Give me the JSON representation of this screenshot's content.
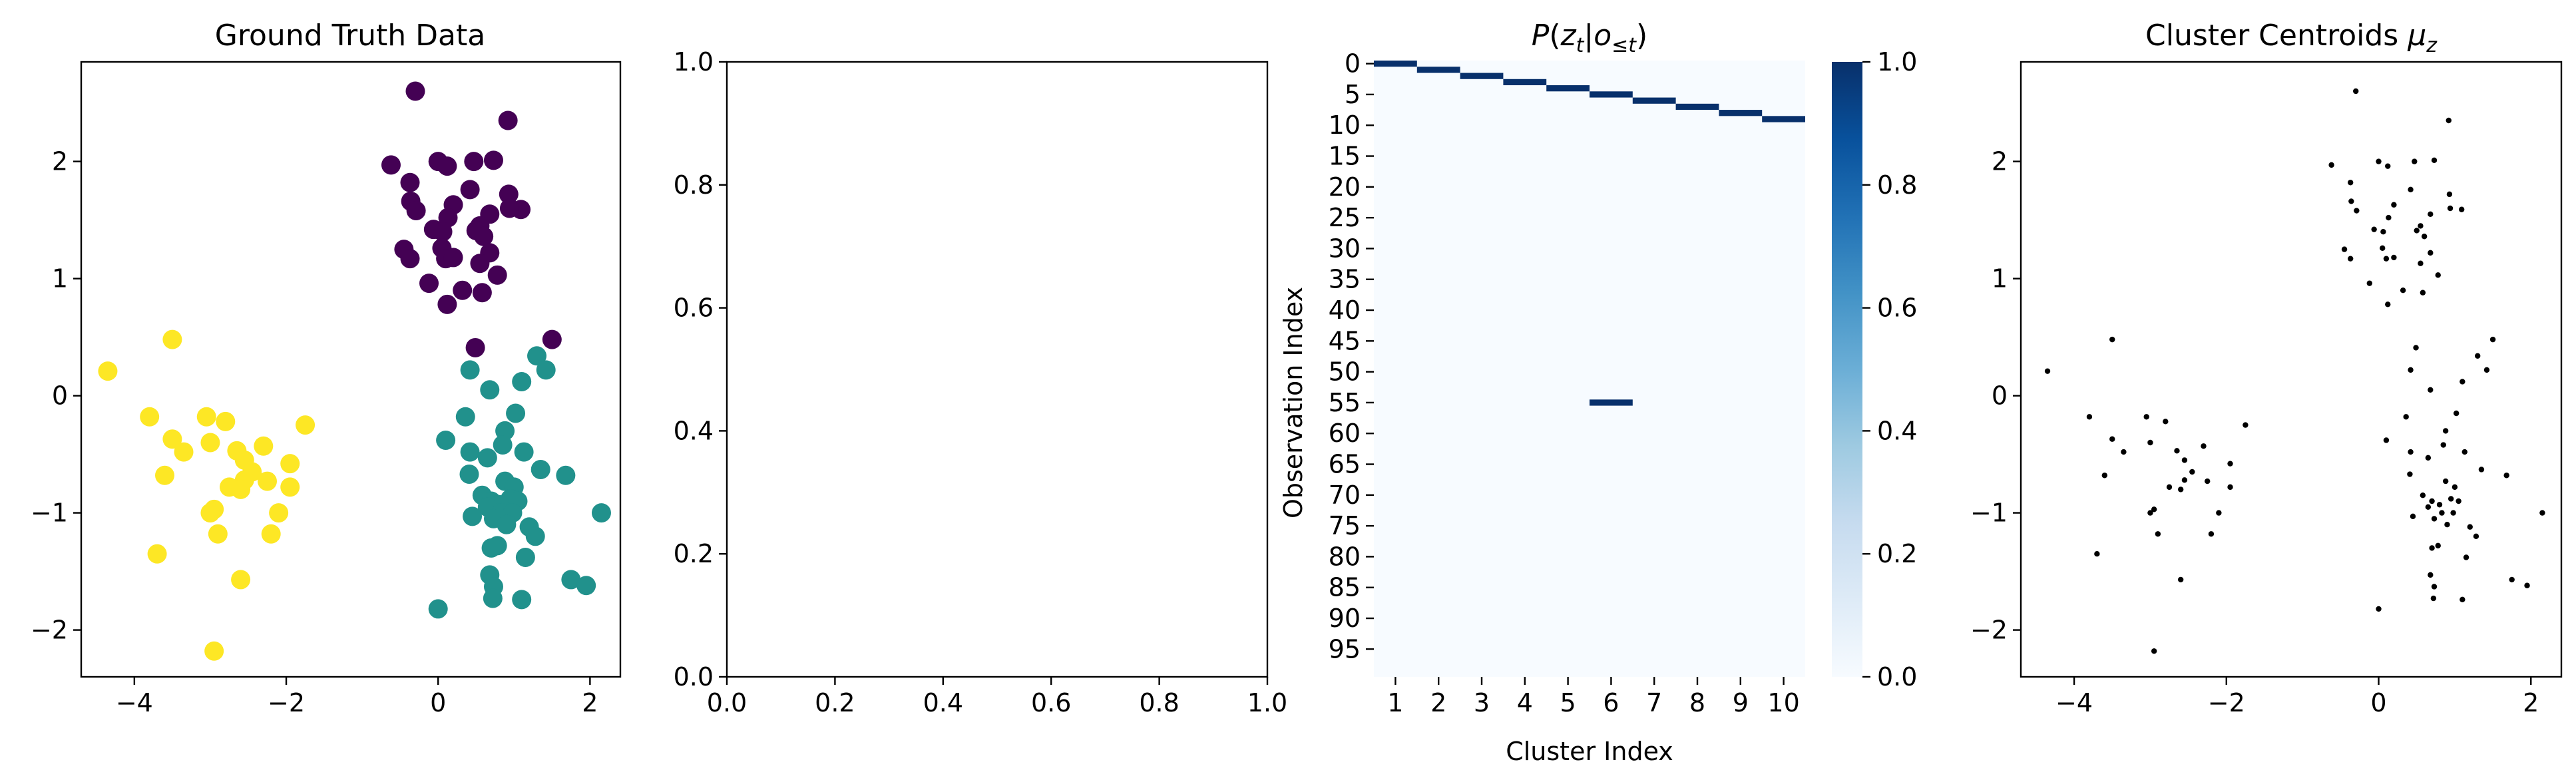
{
  "figure": {
    "panel1": {
      "title": "Ground Truth Data"
    },
    "panel2": {
      "title": ""
    },
    "panel3": {
      "title": "P(z_t | o_{≤t})",
      "xlabel": "Cluster Index",
      "ylabel": "Observation Index"
    },
    "panel4": {
      "title": "Cluster Centroids μ_z"
    }
  },
  "chart_data": [
    {
      "type": "scatter",
      "title": "Ground Truth Data",
      "xlim": [
        -4.7,
        2.4
      ],
      "ylim": [
        -2.4,
        2.85
      ],
      "xticks": [
        -4,
        -2,
        0,
        2
      ],
      "yticks": [
        -2,
        -1,
        0,
        1,
        2
      ],
      "xtick_labels": [
        "−4",
        "−2",
        "0",
        "2"
      ],
      "ytick_labels": [
        "−2",
        "−1",
        "0",
        "1",
        "2"
      ],
      "grid": false,
      "series": [
        {
          "color": "#440154",
          "points": [
            [
              -0.3,
              2.6
            ],
            [
              0.92,
              2.35
            ],
            [
              -0.62,
              1.97
            ],
            [
              0,
              2
            ],
            [
              0.12,
              1.96
            ],
            [
              0.47,
              2
            ],
            [
              0.73,
              2.01
            ],
            [
              -0.37,
              1.82
            ],
            [
              0.42,
              1.76
            ],
            [
              0.93,
              1.72
            ],
            [
              -0.36,
              1.66
            ],
            [
              -0.29,
              1.58
            ],
            [
              0.2,
              1.63
            ],
            [
              0.68,
              1.55
            ],
            [
              1.09,
              1.59
            ],
            [
              0.13,
              1.52
            ],
            [
              0.94,
              1.6
            ],
            [
              0.55,
              1.45
            ],
            [
              -0.06,
              1.42
            ],
            [
              0.06,
              1.4
            ],
            [
              0.5,
              1.41
            ],
            [
              0.6,
              1.36
            ],
            [
              0.05,
              1.26
            ],
            [
              -0.45,
              1.25
            ],
            [
              0.68,
              1.22
            ],
            [
              -0.37,
              1.17
            ],
            [
              0.1,
              1.17
            ],
            [
              0.2,
              1.18
            ],
            [
              0.55,
              1.13
            ],
            [
              0.78,
              1.03
            ],
            [
              -0.12,
              0.96
            ],
            [
              0.32,
              0.9
            ],
            [
              0.58,
              0.88
            ],
            [
              0.12,
              0.78
            ],
            [
              0.49,
              0.41
            ],
            [
              1.5,
              0.48
            ]
          ]
        },
        {
          "color": "#21918c",
          "points": [
            [
              1.3,
              0.34
            ],
            [
              1.42,
              0.22
            ],
            [
              0.42,
              0.22
            ],
            [
              1.1,
              0.12
            ],
            [
              0.68,
              0.05
            ],
            [
              0.36,
              -0.18
            ],
            [
              1.02,
              -0.15
            ],
            [
              0.88,
              -0.3
            ],
            [
              0.1,
              -0.38
            ],
            [
              0.42,
              -0.48
            ],
            [
              0.85,
              -0.42
            ],
            [
              0.65,
              -0.53
            ],
            [
              1.13,
              -0.48
            ],
            [
              0.41,
              -0.67
            ],
            [
              1.35,
              -0.63
            ],
            [
              1.68,
              -0.68
            ],
            [
              0.88,
              -0.73
            ],
            [
              0.58,
              -0.85
            ],
            [
              1,
              -0.78
            ],
            [
              0.7,
              -0.9
            ],
            [
              0.8,
              -0.93
            ],
            [
              0.95,
              -0.88
            ],
            [
              1.05,
              -0.9
            ],
            [
              0.65,
              -0.95
            ],
            [
              0.83,
              -1
            ],
            [
              0.98,
              -1
            ],
            [
              0.45,
              -1.03
            ],
            [
              0.73,
              -1.05
            ],
            [
              0.9,
              -1.1
            ],
            [
              1.2,
              -1.12
            ],
            [
              0.78,
              -1.28
            ],
            [
              1.28,
              -1.2
            ],
            [
              0.7,
              -1.3
            ],
            [
              1.15,
              -1.38
            ],
            [
              0.68,
              -1.53
            ],
            [
              1.75,
              -1.57
            ],
            [
              0.73,
              -1.63
            ],
            [
              1.95,
              -1.62
            ],
            [
              0.72,
              -1.73
            ],
            [
              1.1,
              -1.74
            ],
            [
              0,
              -1.82
            ],
            [
              2.15,
              -1
            ]
          ]
        },
        {
          "color": "#fde725",
          "points": [
            [
              -4.35,
              0.21
            ],
            [
              -3.5,
              0.48
            ],
            [
              -3.8,
              -0.18
            ],
            [
              -3.05,
              -0.18
            ],
            [
              -2.8,
              -0.22
            ],
            [
              -1.75,
              -0.25
            ],
            [
              -3.5,
              -0.37
            ],
            [
              -3,
              -0.4
            ],
            [
              -2.3,
              -0.43
            ],
            [
              -3.35,
              -0.48
            ],
            [
              -2.65,
              -0.47
            ],
            [
              -2.55,
              -0.55
            ],
            [
              -1.95,
              -0.58
            ],
            [
              -2.45,
              -0.65
            ],
            [
              -3.6,
              -0.68
            ],
            [
              -2.55,
              -0.72
            ],
            [
              -2.25,
              -0.73
            ],
            [
              -2.75,
              -0.78
            ],
            [
              -2.6,
              -0.8
            ],
            [
              -1.95,
              -0.78
            ],
            [
              -2.95,
              -0.97
            ],
            [
              -3,
              -1
            ],
            [
              -2.1,
              -1
            ],
            [
              -2.9,
              -1.18
            ],
            [
              -2.2,
              -1.18
            ],
            [
              -3.7,
              -1.35
            ],
            [
              -2.6,
              -1.57
            ],
            [
              -2.95,
              -2.18
            ]
          ]
        }
      ]
    },
    {
      "type": "line",
      "title": "",
      "xlim": [
        0,
        1
      ],
      "ylim": [
        0,
        1
      ],
      "xticks": [
        0,
        0.2,
        0.4,
        0.6,
        0.8,
        1
      ],
      "yticks": [
        0,
        0.2,
        0.4,
        0.6,
        0.8,
        1
      ],
      "xtick_labels": [
        "0.0",
        "0.2",
        "0.4",
        "0.6",
        "0.8",
        "1.0"
      ],
      "ytick_labels": [
        "0.0",
        "0.2",
        "0.4",
        "0.6",
        "0.8",
        "1.0"
      ],
      "series": []
    },
    {
      "type": "heatmap",
      "title": "P(z_t | o_{≤t})",
      "xlabel": "Cluster Index",
      "ylabel": "Observation Index",
      "n_rows": 100,
      "x_categories": [
        "1",
        "2",
        "3",
        "4",
        "5",
        "6",
        "7",
        "8",
        "9",
        "10"
      ],
      "ytick_labels": [
        "0",
        "5",
        "10",
        "15",
        "20",
        "25",
        "30",
        "35",
        "40",
        "45",
        "50",
        "55",
        "60",
        "65",
        "70",
        "75",
        "80",
        "85",
        "90",
        "95"
      ],
      "colormap": "Blues",
      "vmin": 0,
      "vmax": 1,
      "colorbar_ticks": [
        "0.0",
        "0.2",
        "0.4",
        "0.6",
        "0.8",
        "1.0"
      ],
      "nonzero_cells": [
        {
          "row": 0,
          "col": 1,
          "value": 1
        },
        {
          "row": 1,
          "col": 2,
          "value": 1
        },
        {
          "row": 2,
          "col": 3,
          "value": 1
        },
        {
          "row": 3,
          "col": 4,
          "value": 1
        },
        {
          "row": 4,
          "col": 5,
          "value": 1
        },
        {
          "row": 5,
          "col": 6,
          "value": 1
        },
        {
          "row": 6,
          "col": 7,
          "value": 1
        },
        {
          "row": 7,
          "col": 8,
          "value": 1
        },
        {
          "row": 8,
          "col": 9,
          "value": 1
        },
        {
          "row": 9,
          "col": 10,
          "value": 1
        },
        {
          "row": 55,
          "col": 6,
          "value": 1
        }
      ],
      "background_value": 0
    },
    {
      "type": "scatter",
      "title": "Cluster Centroids μ_z",
      "xlim": [
        -4.7,
        2.4
      ],
      "ylim": [
        -2.4,
        2.85
      ],
      "xticks": [
        -4,
        -2,
        0,
        2
      ],
      "yticks": [
        -2,
        -1,
        0,
        1,
        2
      ],
      "xtick_labels": [
        "−4",
        "−2",
        "0",
        "2"
      ],
      "ytick_labels": [
        "−2",
        "−1",
        "0",
        "1",
        "2"
      ],
      "marker_color": "#000000",
      "same_points_as_panel": 1
    }
  ]
}
